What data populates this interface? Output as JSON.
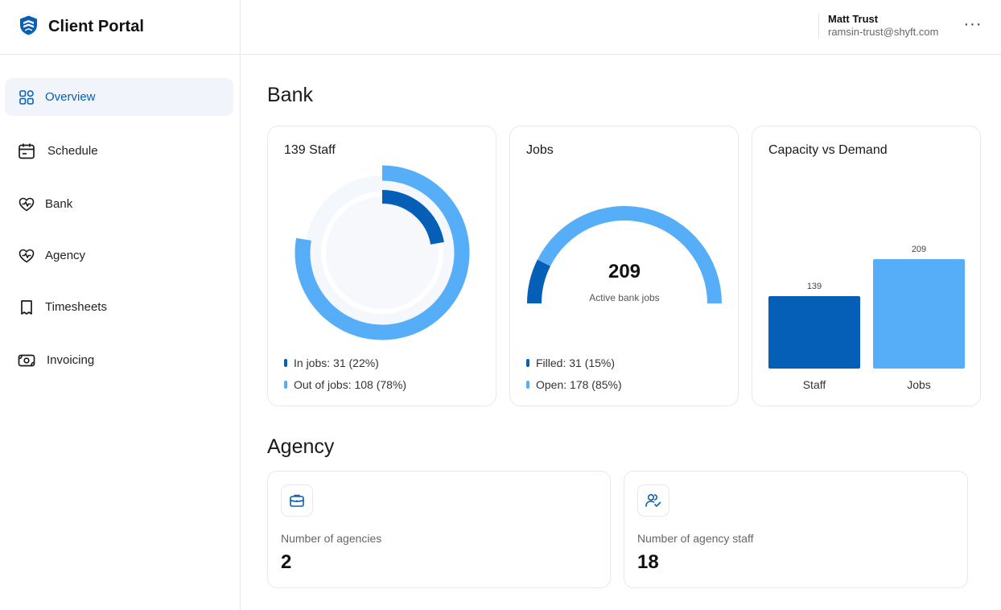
{
  "app": {
    "title": "Client Portal"
  },
  "sidebar": {
    "items": [
      {
        "label": "Overview",
        "icon": "grid-icon",
        "active": true
      },
      {
        "label": "Schedule",
        "icon": "calendar-icon"
      },
      {
        "label": "Bank",
        "icon": "heart-pulse-icon"
      },
      {
        "label": "Agency",
        "icon": "heart-pulse-icon"
      },
      {
        "label": "Timesheets",
        "icon": "receipt-icon"
      },
      {
        "label": "Invoicing",
        "icon": "cash-icon"
      }
    ]
  },
  "user": {
    "name": "Matt Trust",
    "email": "ramsin-trust@shyft.com",
    "more": "···"
  },
  "bank": {
    "title": "Bank",
    "staff_card": {
      "title": "139 Staff",
      "legend": [
        {
          "label": "In jobs: 31 (22%)",
          "color": "#055fb6"
        },
        {
          "label": "Out of jobs: 108 (78%)",
          "color": "#57aef8"
        }
      ]
    },
    "jobs_card": {
      "title": "Jobs",
      "value": "209",
      "caption": "Active bank jobs",
      "legend": [
        {
          "label": "Filled: 31 (15%)",
          "color": "#055fb6"
        },
        {
          "label": "Open: 178 (85%)",
          "color": "#57aef8"
        }
      ]
    },
    "capacity_card": {
      "title": "Capacity vs Demand"
    }
  },
  "agency": {
    "title": "Agency",
    "cards": [
      {
        "label": "Number of agencies",
        "value": "2",
        "icon": "briefcase-icon"
      },
      {
        "label": "Number of agency staff",
        "value": "18",
        "icon": "user-check-icon"
      }
    ]
  },
  "colors": {
    "dark": "#055fb6",
    "light": "#57aef8",
    "accent": "#0a5fb4"
  },
  "chart_data": [
    {
      "type": "pie",
      "title": "139 Staff",
      "categories": [
        "In jobs",
        "Out of jobs"
      ],
      "values": [
        31,
        108
      ]
    },
    {
      "type": "pie",
      "title": "Jobs",
      "categories": [
        "Filled",
        "Open"
      ],
      "values": [
        31,
        178
      ]
    },
    {
      "type": "bar",
      "title": "Capacity vs Demand",
      "categories": [
        "Staff",
        "Jobs"
      ],
      "values": [
        139,
        209
      ],
      "data_labels": [
        "139",
        "209"
      ]
    }
  ]
}
